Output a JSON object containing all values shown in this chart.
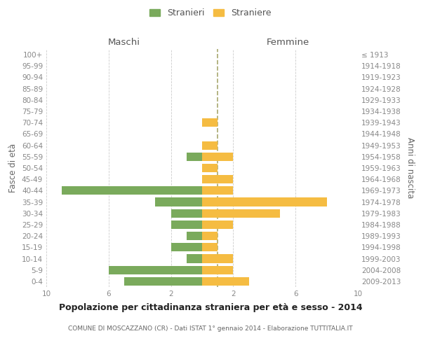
{
  "age_groups": [
    "0-4",
    "5-9",
    "10-14",
    "15-19",
    "20-24",
    "25-29",
    "30-34",
    "35-39",
    "40-44",
    "45-49",
    "50-54",
    "55-59",
    "60-64",
    "65-69",
    "70-74",
    "75-79",
    "80-84",
    "85-89",
    "90-94",
    "95-99",
    "100+"
  ],
  "birth_years": [
    "2009-2013",
    "2004-2008",
    "1999-2003",
    "1994-1998",
    "1989-1993",
    "1984-1988",
    "1979-1983",
    "1974-1978",
    "1969-1973",
    "1964-1968",
    "1959-1963",
    "1954-1958",
    "1949-1953",
    "1944-1948",
    "1939-1943",
    "1934-1938",
    "1929-1933",
    "1924-1928",
    "1919-1923",
    "1914-1918",
    "≤ 1913"
  ],
  "males": [
    5,
    6,
    1,
    2,
    1,
    2,
    2,
    3,
    9,
    0,
    0,
    1,
    0,
    0,
    0,
    0,
    0,
    0,
    0,
    0,
    0
  ],
  "females": [
    3,
    2,
    2,
    1,
    1,
    2,
    5,
    8,
    2,
    2,
    1,
    2,
    1,
    0,
    1,
    0,
    0,
    0,
    0,
    0,
    0
  ],
  "male_color": "#7aaa5c",
  "female_color": "#f5bc42",
  "grid_color": "#cccccc",
  "center_line_color": "#999955",
  "title": "Popolazione per cittadinanza straniera per età e sesso - 2014",
  "subtitle": "COMUNE DI MOSCAZZANO (CR) - Dati ISTAT 1° gennaio 2014 - Elaborazione TUTTITALIA.IT",
  "xlabel_left": "Maschi",
  "xlabel_right": "Femmine",
  "ylabel_left": "Fasce di età",
  "ylabel_right": "Anni di nascita",
  "legend_male": "Stranieri",
  "legend_female": "Straniere",
  "xlim": 10,
  "xtick_vals": [
    -10,
    -6,
    -2,
    2,
    6,
    10
  ],
  "xtick_labels": [
    "10",
    "6",
    "2",
    "2",
    "6",
    "10"
  ],
  "bar_height": 0.75
}
